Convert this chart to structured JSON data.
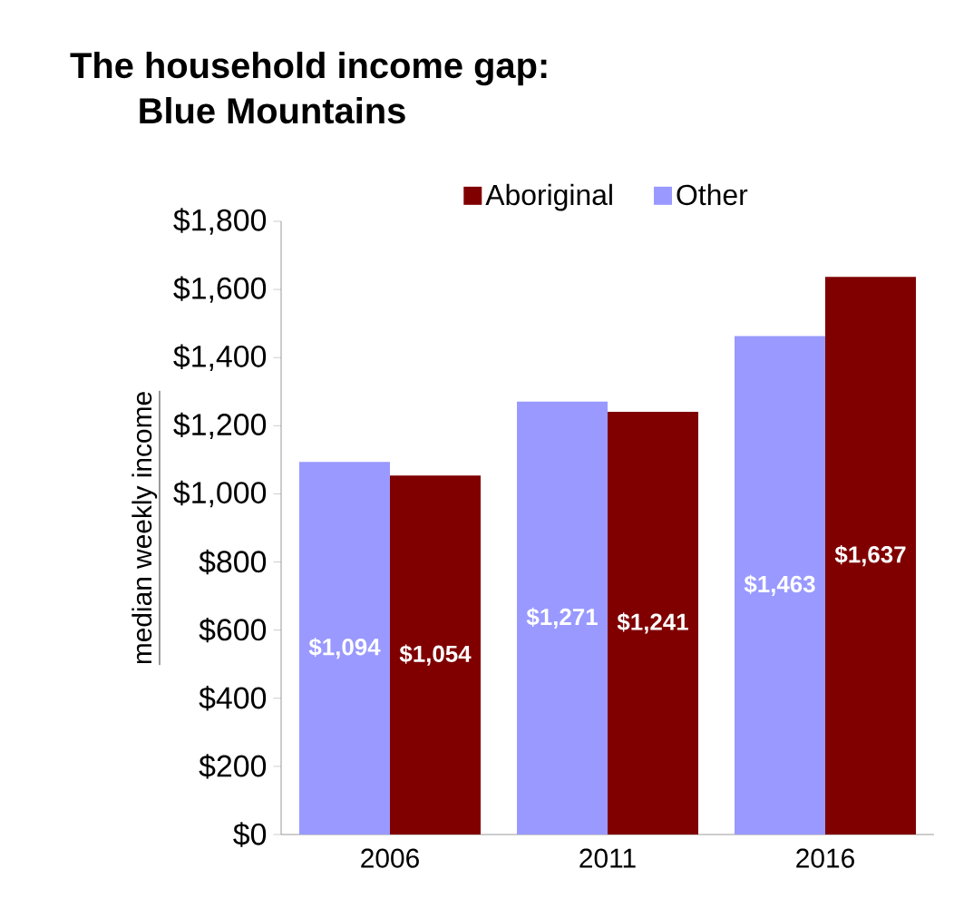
{
  "chart_data": {
    "type": "bar",
    "title": "The household income gap:",
    "subtitle": "Blue Mountains",
    "ylabel": "median weekly income",
    "categories": [
      "2006",
      "2011",
      "2016"
    ],
    "series": [
      {
        "name": "Other",
        "color": "#9999ff",
        "values": [
          1094,
          1271,
          1463
        ],
        "value_labels": [
          "$1,094",
          "$1,271",
          "$1,463"
        ]
      },
      {
        "name": "Aboriginal",
        "color": "#800000",
        "values": [
          1054,
          1241,
          1637
        ],
        "value_labels": [
          "$1,054",
          "$1,241",
          "$1,637"
        ]
      }
    ],
    "ylim": [
      0,
      1800
    ],
    "yticks": [
      {
        "value": 0,
        "label": "$0"
      },
      {
        "value": 200,
        "label": "$200"
      },
      {
        "value": 400,
        "label": "$400"
      },
      {
        "value": 600,
        "label": "$600"
      },
      {
        "value": 800,
        "label": "$800"
      },
      {
        "value": 1000,
        "label": "$1,000"
      },
      {
        "value": 1200,
        "label": "$1,200"
      },
      {
        "value": 1400,
        "label": "$1,400"
      },
      {
        "value": 1600,
        "label": "$1,600"
      },
      {
        "value": 1800,
        "label": "$1,800"
      }
    ],
    "legend": "top"
  }
}
